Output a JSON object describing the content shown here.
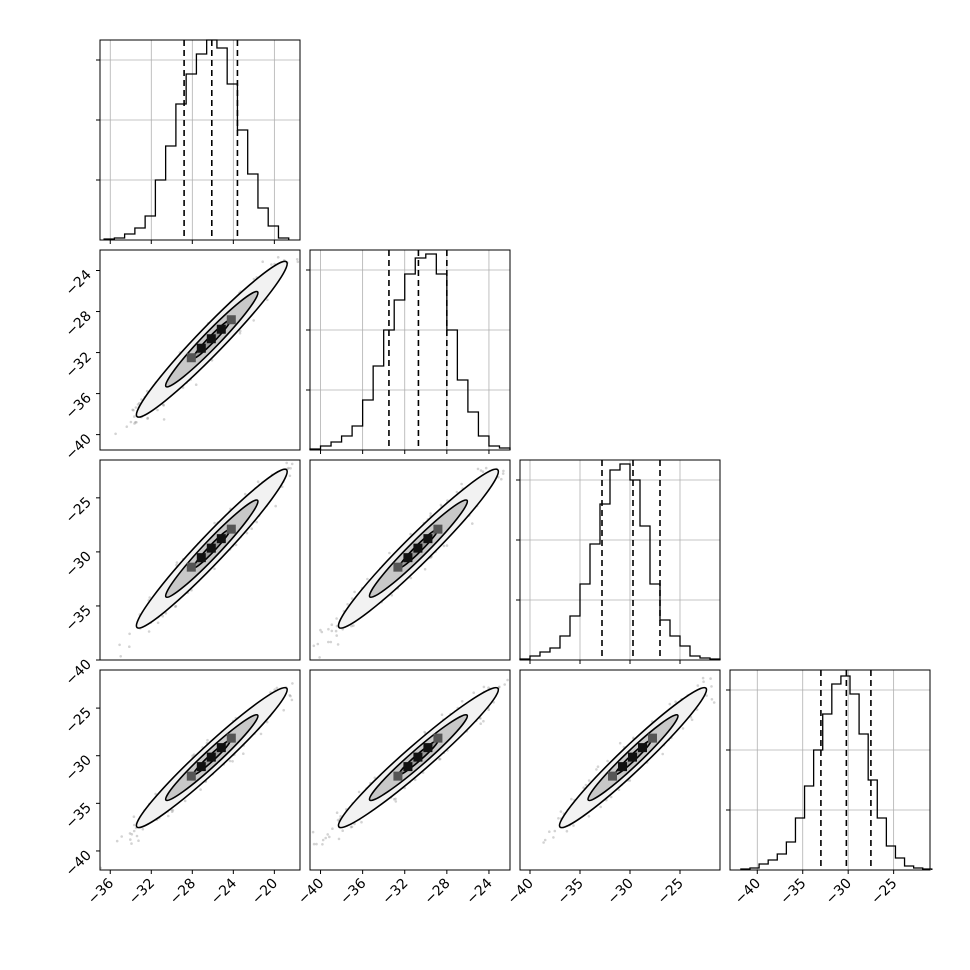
{
  "figure": {
    "type": "corner-plot",
    "colors": {
      "background": "#ffffff",
      "line": "#000000",
      "grid": "#b0b0b0",
      "scatter": "#808080",
      "contour_fill": "#c8c8c8"
    }
  },
  "chart_data": [
    {
      "type": "bar",
      "style": "step-histogram",
      "row": 0,
      "col": 0,
      "grid": true,
      "xlim": [
        -37,
        -17.5
      ],
      "ylim": [
        0,
        1.0
      ],
      "bin_edges": [
        -36.6,
        -35.6,
        -34.6,
        -33.6,
        -32.6,
        -31.6,
        -30.6,
        -29.6,
        -28.6,
        -27.6,
        -26.6,
        -25.6,
        -24.6,
        -23.6,
        -22.6,
        -21.6,
        -20.6,
        -19.6,
        -18.6
      ],
      "values": [
        0.005,
        0.01,
        0.03,
        0.06,
        0.12,
        0.3,
        0.47,
        0.68,
        0.83,
        0.93,
        1.0,
        0.96,
        0.78,
        0.55,
        0.33,
        0.16,
        0.07,
        0.01
      ],
      "quantile_lines": [
        -28.8,
        -26.1,
        -23.6
      ],
      "x_ticks": [
        -36,
        -32,
        -28,
        -24,
        -20
      ],
      "y_ticks": [
        0.3,
        0.6,
        0.9
      ]
    },
    {
      "type": "bar",
      "style": "step-histogram",
      "row": 1,
      "col": 1,
      "grid": true,
      "xlim": [
        -41,
        -22
      ],
      "ylim": [
        0,
        1.0
      ],
      "bin_edges": [
        -41,
        -40,
        -39,
        -38,
        -37,
        -36,
        -35,
        -34,
        -33,
        -32,
        -31,
        -30,
        -29,
        -28,
        -27,
        -26,
        -25,
        -24,
        -23,
        -22
      ],
      "values": [
        0.005,
        0.02,
        0.04,
        0.07,
        0.12,
        0.25,
        0.42,
        0.6,
        0.75,
        0.88,
        0.96,
        0.98,
        0.88,
        0.6,
        0.35,
        0.19,
        0.07,
        0.02,
        0.01
      ],
      "quantile_lines": [
        -33.5,
        -30.7,
        -28.0
      ],
      "x_ticks": [
        -40,
        -36,
        -32,
        -28,
        -24
      ],
      "y_ticks": [
        0.3,
        0.6,
        0.9
      ]
    },
    {
      "type": "bar",
      "style": "step-histogram",
      "row": 2,
      "col": 2,
      "grid": true,
      "xlim": [
        -41,
        -21
      ],
      "ylim": [
        0,
        1.0
      ],
      "bin_edges": [
        -41,
        -40,
        -39,
        -38,
        -37,
        -36,
        -35,
        -34,
        -33,
        -32,
        -31,
        -30,
        -29,
        -28,
        -27,
        -26,
        -25,
        -24,
        -23,
        -22,
        -21
      ],
      "values": [
        0.005,
        0.02,
        0.04,
        0.06,
        0.12,
        0.22,
        0.38,
        0.58,
        0.78,
        0.95,
        0.98,
        0.9,
        0.67,
        0.38,
        0.2,
        0.12,
        0.07,
        0.02,
        0.01,
        0.005
      ],
      "quantile_lines": [
        -32.8,
        -29.7,
        -27.0
      ],
      "x_ticks": [
        -40,
        -35,
        -30,
        -25
      ],
      "y_ticks": [
        0.3,
        0.6,
        0.9
      ]
    },
    {
      "type": "bar",
      "style": "step-histogram",
      "row": 3,
      "col": 3,
      "grid": true,
      "xlim": [
        -43,
        -21
      ],
      "ylim": [
        0,
        1.0
      ],
      "bin_edges": [
        -41.8,
        -40.8,
        -39.8,
        -38.8,
        -37.8,
        -36.8,
        -35.8,
        -34.8,
        -33.8,
        -32.8,
        -31.8,
        -30.8,
        -29.8,
        -28.8,
        -27.8,
        -26.8,
        -25.8,
        -24.8,
        -23.8,
        -22.8,
        -21.8,
        -20.8
      ],
      "values": [
        0.005,
        0.01,
        0.03,
        0.05,
        0.08,
        0.14,
        0.26,
        0.42,
        0.6,
        0.78,
        0.93,
        0.97,
        0.88,
        0.68,
        0.45,
        0.26,
        0.12,
        0.06,
        0.02,
        0.01,
        0.005
      ],
      "quantile_lines": [
        -33.0,
        -30.2,
        -27.5
      ],
      "x_ticks": [
        -40,
        -35,
        -30,
        -25
      ],
      "y_ticks": [
        0.3,
        0.6,
        0.9
      ]
    },
    {
      "type": "scatter",
      "style": "2d-density",
      "row": 1,
      "col": 0,
      "xlim": [
        -37,
        -17.5
      ],
      "ylim": [
        -41.5,
        -22
      ],
      "center": [
        -26.1,
        -30.7
      ],
      "sd": [
        3.0,
        3.1
      ],
      "corr": 0.97,
      "x_ticks": [],
      "y_ticks": [
        -40,
        -36,
        -32,
        -28,
        -24
      ]
    },
    {
      "type": "scatter",
      "style": "2d-density",
      "row": 2,
      "col": 0,
      "xlim": [
        -37,
        -17.5
      ],
      "ylim": [
        -40,
        -21.5
      ],
      "center": [
        -26.1,
        -29.7
      ],
      "sd": [
        3.0,
        3.0
      ],
      "corr": 0.97,
      "x_ticks": [],
      "y_ticks": [
        -40,
        -35,
        -30,
        -25
      ]
    },
    {
      "type": "scatter",
      "style": "2d-density",
      "row": 2,
      "col": 1,
      "xlim": [
        -41,
        -22
      ],
      "ylim": [
        -40,
        -21.5
      ],
      "center": [
        -30.7,
        -29.7
      ],
      "sd": [
        3.1,
        3.0
      ],
      "corr": 0.97,
      "x_ticks": [],
      "y_ticks": []
    },
    {
      "type": "scatter",
      "style": "2d-density",
      "row": 3,
      "col": 0,
      "xlim": [
        -37,
        -17.5
      ],
      "ylim": [
        -42,
        -21
      ],
      "center": [
        -26.1,
        -30.2
      ],
      "sd": [
        3.0,
        3.0
      ],
      "corr": 0.97,
      "x_ticks": [
        -36,
        -32,
        -28,
        -24,
        -20
      ],
      "y_ticks": [
        -40,
        -35,
        -30,
        -25
      ]
    },
    {
      "type": "scatter",
      "style": "2d-density",
      "row": 3,
      "col": 1,
      "xlim": [
        -41,
        -22
      ],
      "ylim": [
        -42,
        -21
      ],
      "center": [
        -30.7,
        -30.2
      ],
      "sd": [
        3.1,
        3.0
      ],
      "corr": 0.97,
      "x_ticks": [
        -40,
        -36,
        -32,
        -28,
        -24
      ],
      "y_ticks": []
    },
    {
      "type": "scatter",
      "style": "2d-density",
      "row": 3,
      "col": 2,
      "xlim": [
        -41,
        -21
      ],
      "ylim": [
        -42,
        -21
      ],
      "center": [
        -29.7,
        -30.2
      ],
      "sd": [
        3.0,
        3.0
      ],
      "corr": 0.97,
      "x_ticks": [
        -40,
        -35,
        -30,
        -25
      ],
      "y_ticks": []
    }
  ]
}
